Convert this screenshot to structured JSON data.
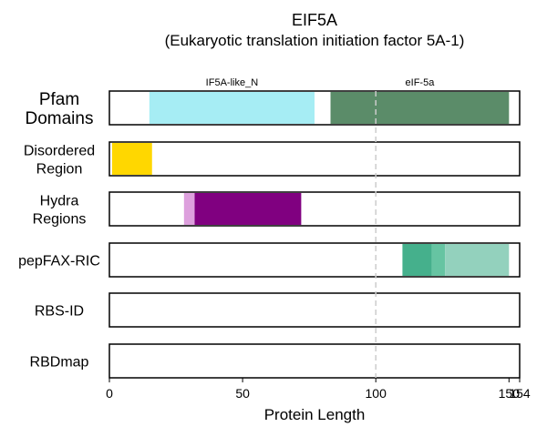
{
  "chart_data": {
    "type": "bar",
    "title": "EIF5A",
    "subtitle": "(Eukaryotic translation initiation factor 5A-1)",
    "xlabel": "Protein Length",
    "xlim": [
      0,
      154
    ],
    "x_ticks": [
      0,
      50,
      100,
      150,
      154
    ],
    "x_tick_labels": [
      "0",
      "50",
      "100",
      "150",
      "154"
    ],
    "reference_line_x": 100,
    "rows": [
      {
        "label": "Pfam\nDomains",
        "segments": [
          {
            "start": 15,
            "end": 77,
            "color": "#a6edf4",
            "label": "IF5A-like_N"
          },
          {
            "start": 83,
            "end": 150,
            "color": "#5b8c69",
            "label": "eIF-5a"
          }
        ]
      },
      {
        "label": "Disordered\nRegion",
        "segments": [
          {
            "start": 1,
            "end": 16,
            "color": "#ffd700"
          }
        ]
      },
      {
        "label": "Hydra\nRegions",
        "segments": [
          {
            "start": 28,
            "end": 32,
            "color": "#dda0dd"
          },
          {
            "start": 32,
            "end": 72,
            "color": "#800080"
          }
        ]
      },
      {
        "label": "pepFAX-RIC",
        "segments": [
          {
            "start": 110,
            "end": 121,
            "color": "#45b08c"
          },
          {
            "start": 121,
            "end": 126,
            "color": "#66c4a2"
          },
          {
            "start": 126,
            "end": 150,
            "color": "#93d1bd"
          }
        ]
      },
      {
        "label": "RBS-ID",
        "segments": []
      },
      {
        "label": "RBDmap",
        "segments": []
      }
    ]
  }
}
